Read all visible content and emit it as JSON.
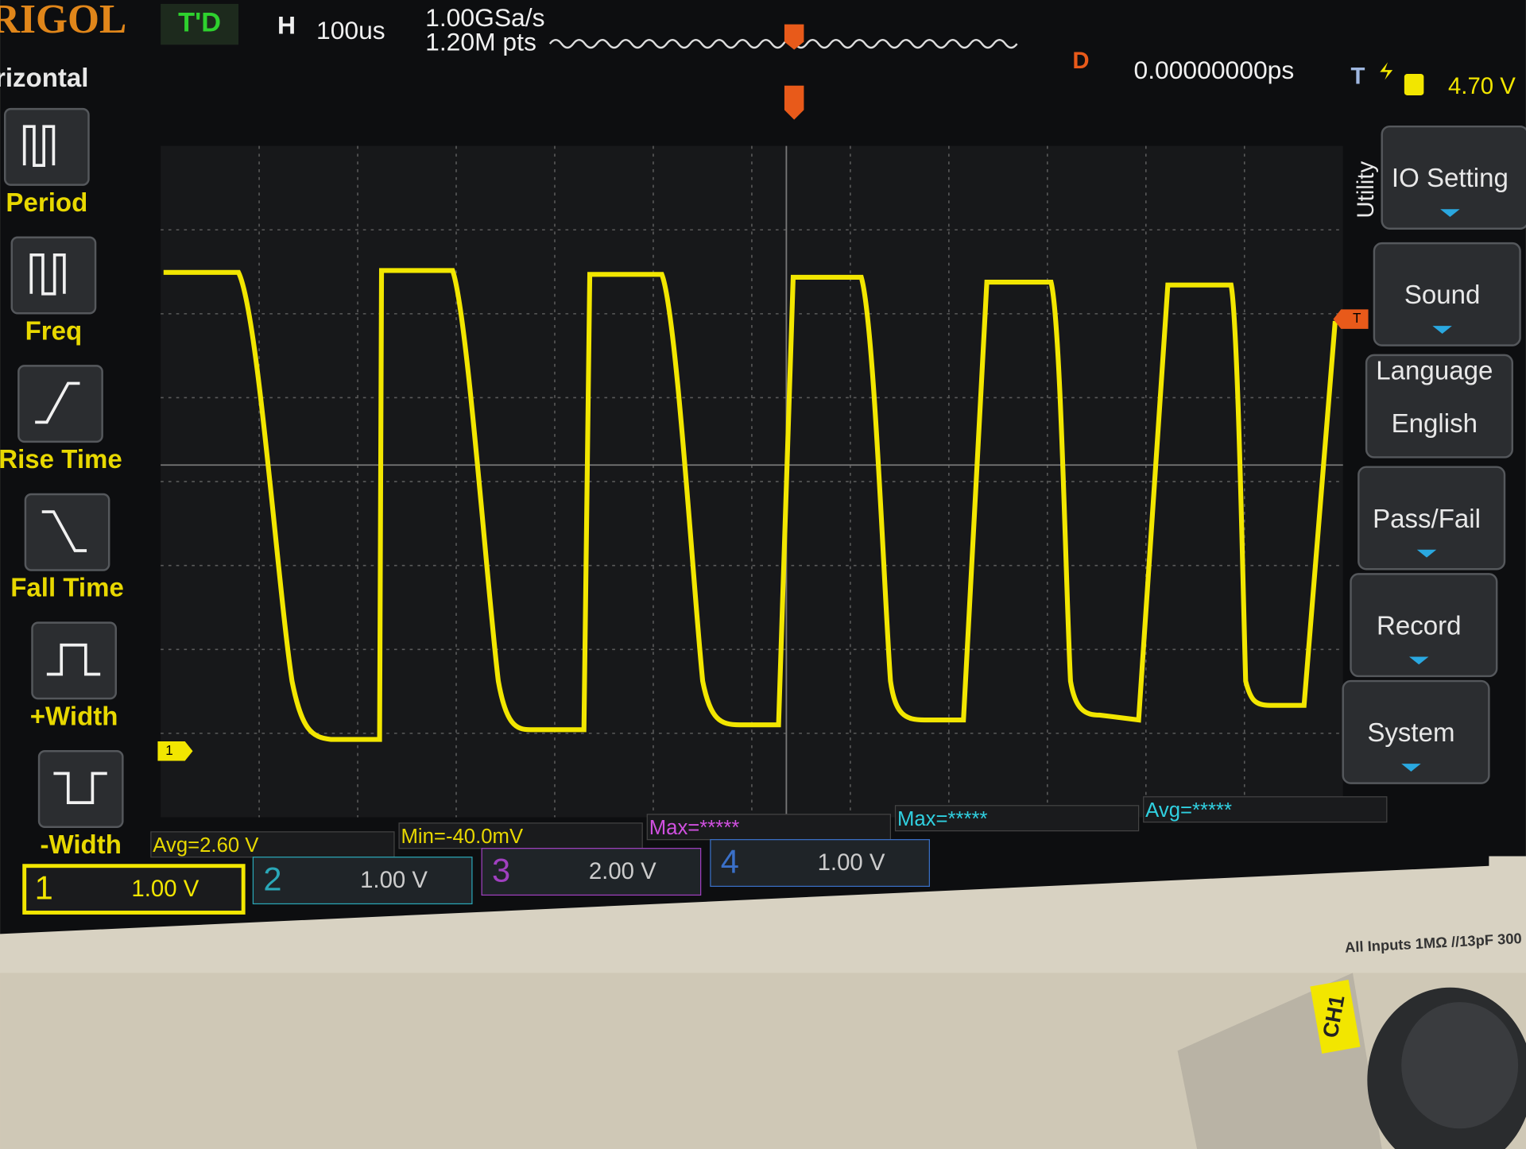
{
  "header": {
    "brand": "RIGOL",
    "status": "T'D",
    "timebase_label": "H",
    "timebase": "100us",
    "sample_rate": "1.00GSa/s",
    "memory_depth": "1.20M pts",
    "delay_label": "D",
    "delay": "0.00000000ps",
    "trigger_label": "T",
    "trigger_level": "4.70 V"
  },
  "left_menu": {
    "title": "rizontal",
    "items": [
      "Period",
      "Freq",
      "Rise Time",
      "Fall Time",
      "+Width",
      "-Width"
    ]
  },
  "right_menu": {
    "title": "Utility",
    "items": [
      {
        "label": "IO Setting"
      },
      {
        "label": "Sound"
      },
      {
        "label": "Language",
        "value": "English"
      },
      {
        "label": "Pass/Fail"
      },
      {
        "label": "Record"
      },
      {
        "label": "System"
      }
    ]
  },
  "measurements": [
    "Avg=2.60 V",
    "Min=-40.0mV",
    "Max=*****",
    "Max=*****",
    "Avg=*****"
  ],
  "channels": [
    {
      "number": "1",
      "scale": "1.00 V"
    },
    {
      "number": "2",
      "scale": "1.00 V"
    },
    {
      "number": "3",
      "scale": "2.00 V"
    },
    {
      "number": "4",
      "scale": "1.00 V"
    }
  ],
  "markers": {
    "trigger": "T",
    "channel": "1"
  },
  "bezel": {
    "inputs": "All Inputs 1MΩ //13pF 300",
    "channel_label": "CH1"
  }
}
